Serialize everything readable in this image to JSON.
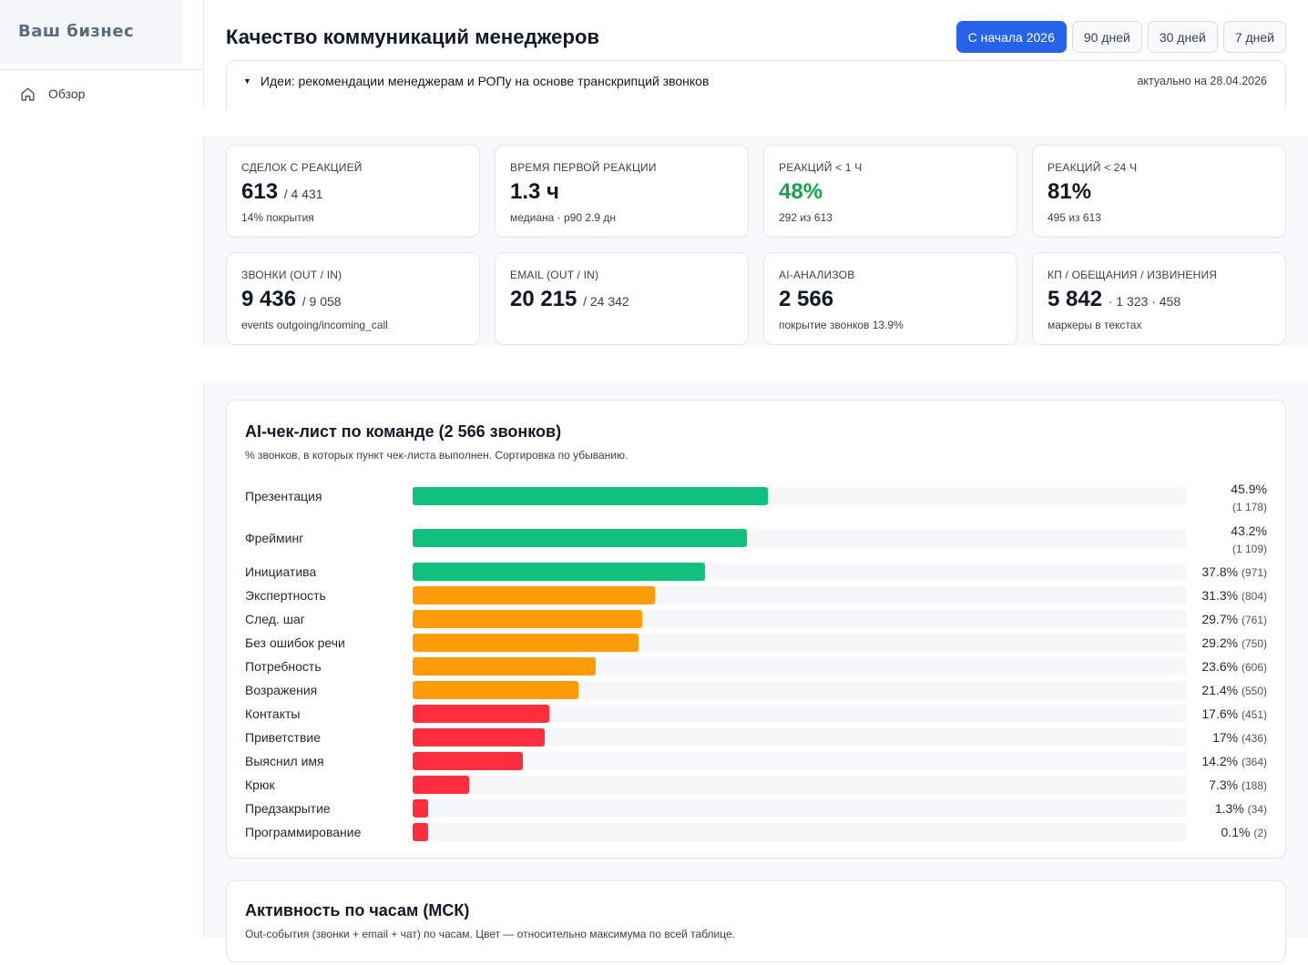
{
  "sidebar": {
    "brand": "Ваш бизнес",
    "items": [
      {
        "label": "Обзор",
        "icon": "home-icon"
      }
    ]
  },
  "header": {
    "title": "Качество коммуникаций менеджеров",
    "periods": [
      {
        "label": "С начала 2026",
        "active": true
      },
      {
        "label": "90 дней",
        "active": false
      },
      {
        "label": "30 дней",
        "active": false
      },
      {
        "label": "7 дней",
        "active": false
      }
    ]
  },
  "ideas": {
    "summary": "Идеи: рекомендации менеджерам и РОПу на основе транскрипций звонков",
    "date": "актуально на 28.04.2026"
  },
  "kpis": [
    {
      "label": "СДЕЛОК С РЕАКЦИЕЙ",
      "value": "613",
      "sub": "/ 4 431",
      "note": "14% покрытия",
      "color": "#111827"
    },
    {
      "label": "ВРЕМЯ ПЕРВОЙ РЕАКЦИИ",
      "value": "1.3 ч",
      "sub": "",
      "note": "медиана · p90 2.9 дн",
      "color": "#111827"
    },
    {
      "label": "РЕАКЦИЙ < 1 Ч",
      "value": "48%",
      "sub": "",
      "note": "292 из 613",
      "color": "#16a34a"
    },
    {
      "label": "РЕАКЦИЙ < 24 Ч",
      "value": "81%",
      "sub": "",
      "note": "495 из 613",
      "color": "#111827"
    },
    {
      "label": "ЗВОНКИ (OUT / IN)",
      "value": "9 436",
      "sub": "/ 9 058",
      "note": "events outgoing/incoming_call",
      "color": "#111827"
    },
    {
      "label": "EMAIL (OUT / IN)",
      "value": "20 215",
      "sub": "/ 24 342",
      "note": "",
      "color": "#111827"
    },
    {
      "label": "AI-АНАЛИЗОВ",
      "value": "2 566",
      "sub": "",
      "note": "покрытие звонков 13.9%",
      "color": "#111827"
    },
    {
      "label": "КП / ОБЕЩАНИЯ / ИЗВИНЕНИЯ",
      "value": "5 842",
      "sub": "· 1 323 · 458",
      "note": "маркеры в текстах",
      "color": "#111827"
    }
  ],
  "checklist": {
    "title": "AI-чек-лист по команде (2 566 звонков)",
    "description": "% звонков, в которых пункт чек-листа выполнен. Сортировка по убыванию.",
    "colors": {
      "high": "#10c07e",
      "mid": "#ff9c0a",
      "low": "#ff2e3f"
    },
    "chart_data": {
      "type": "bar",
      "orientation": "horizontal",
      "categories": [
        "Презентация",
        "Фрейминг",
        "Инициатива",
        "Экспертность",
        "След. шаг",
        "Без ошибок речи",
        "Потребность",
        "Возражения",
        "Контакты",
        "Приветствие",
        "Выяснил имя",
        "Крюк",
        "Предзакрытие",
        "Программирование"
      ],
      "values": [
        45.9,
        43.2,
        37.8,
        31.3,
        29.7,
        29.2,
        23.6,
        21.4,
        17.6,
        17,
        14.2,
        7.3,
        1.3,
        0.1
      ],
      "labels": [
        "45.9%",
        "43.2%",
        "37.8%",
        "31.3%",
        "29.7%",
        "29.2%",
        "23.6%",
        "21.4%",
        "17.6%",
        "17%",
        "14.2%",
        "7.3%",
        "1.3%",
        "0.1%"
      ],
      "counts": [
        "(1 178)",
        "(1 109)",
        "(971)",
        "(804)",
        "(761)",
        "(750)",
        "(606)",
        "(550)",
        "(451)",
        "(436)",
        "(364)",
        "(188)",
        "(34)",
        "(2)"
      ],
      "levels": [
        "high",
        "high",
        "high",
        "mid",
        "mid",
        "mid",
        "mid",
        "mid",
        "low",
        "low",
        "low",
        "low",
        "low",
        "low"
      ],
      "xlim": [
        0,
        100
      ]
    }
  },
  "hourly": {
    "title": "Активность по часам (МСК)",
    "description": "Out-события (звонки + email + чат) по часам. Цвет — относительно максимума по всей таблице."
  }
}
